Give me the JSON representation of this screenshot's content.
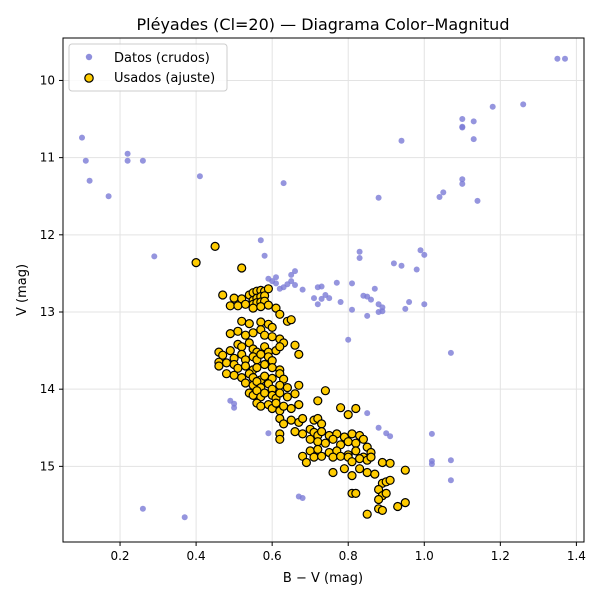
{
  "chart_data": {
    "type": "scatter",
    "title": "Pléyades (Cl=20) — Diagrama Color–Magnitud",
    "xlabel": "B − V (mag)",
    "ylabel": "V (mag)",
    "xlim": [
      0.05,
      1.42
    ],
    "ylim": [
      15.98,
      9.45
    ],
    "y_inverted": true,
    "grid": true,
    "legend_position": "top-left",
    "x_ticks": [
      0.2,
      0.4,
      0.6,
      0.8,
      1.0,
      1.2,
      1.4
    ],
    "x_tick_labels": [
      "0.2",
      "0.4",
      "0.6",
      "0.8",
      "1.0",
      "1.2",
      "1.4"
    ],
    "y_ticks": [
      10,
      11,
      12,
      13,
      14,
      15
    ],
    "y_tick_labels": [
      "10",
      "11",
      "12",
      "13",
      "14",
      "15"
    ],
    "series": [
      {
        "name": "Datos (crudos)",
        "color": "#7b7bd6",
        "marker": "small-circle",
        "points": [
          [
            0.1,
            10.74
          ],
          [
            0.11,
            11.04
          ],
          [
            0.12,
            11.3
          ],
          [
            0.17,
            11.5
          ],
          [
            0.22,
            10.95
          ],
          [
            0.22,
            11.04
          ],
          [
            0.26,
            11.04
          ],
          [
            0.29,
            12.28
          ],
          [
            0.41,
            11.24
          ],
          [
            0.26,
            15.55
          ],
          [
            0.37,
            15.66
          ],
          [
            0.57,
            12.07
          ],
          [
            0.58,
            12.27
          ],
          [
            0.59,
            12.57
          ],
          [
            0.6,
            12.6
          ],
          [
            0.61,
            12.55
          ],
          [
            0.61,
            12.63
          ],
          [
            0.62,
            12.7
          ],
          [
            0.63,
            11.33
          ],
          [
            0.63,
            12.68
          ],
          [
            0.64,
            12.64
          ],
          [
            0.65,
            12.52
          ],
          [
            0.65,
            12.6
          ],
          [
            0.66,
            12.47
          ],
          [
            0.66,
            12.65
          ],
          [
            0.68,
            12.71
          ],
          [
            0.71,
            12.82
          ],
          [
            0.72,
            12.68
          ],
          [
            0.72,
            12.9
          ],
          [
            0.73,
            12.67
          ],
          [
            0.73,
            12.83
          ],
          [
            0.74,
            12.78
          ],
          [
            0.75,
            12.82
          ],
          [
            0.77,
            12.62
          ],
          [
            0.78,
            12.87
          ],
          [
            0.8,
            13.36
          ],
          [
            0.81,
            12.63
          ],
          [
            0.81,
            12.97
          ],
          [
            0.83,
            12.22
          ],
          [
            0.83,
            12.3
          ],
          [
            0.84,
            12.79
          ],
          [
            0.85,
            12.8
          ],
          [
            0.85,
            13.05
          ],
          [
            0.86,
            12.84
          ],
          [
            0.87,
            12.7
          ],
          [
            0.88,
            12.9
          ],
          [
            0.88,
            13.0
          ],
          [
            0.88,
            11.52
          ],
          [
            0.89,
            12.94
          ],
          [
            0.89,
            12.99
          ],
          [
            0.92,
            12.37
          ],
          [
            0.94,
            10.78
          ],
          [
            0.94,
            12.4
          ],
          [
            0.95,
            12.96
          ],
          [
            0.96,
            12.87
          ],
          [
            0.98,
            12.45
          ],
          [
            0.99,
            12.2
          ],
          [
            1.0,
            12.26
          ],
          [
            1.0,
            12.9
          ],
          [
            1.04,
            11.51
          ],
          [
            1.05,
            11.45
          ],
          [
            1.07,
            13.53
          ],
          [
            1.1,
            11.28
          ],
          [
            1.1,
            11.34
          ],
          [
            1.1,
            10.5
          ],
          [
            1.1,
            10.6
          ],
          [
            1.1,
            10.61
          ],
          [
            1.13,
            10.53
          ],
          [
            1.13,
            10.76
          ],
          [
            1.14,
            11.56
          ],
          [
            1.18,
            10.34
          ],
          [
            1.26,
            10.31
          ],
          [
            1.35,
            9.72
          ],
          [
            1.37,
            9.72
          ],
          [
            0.49,
            14.15
          ],
          [
            0.5,
            14.19
          ],
          [
            0.5,
            14.24
          ],
          [
            0.59,
            14.57
          ],
          [
            0.67,
            15.39
          ],
          [
            0.68,
            15.41
          ],
          [
            0.85,
            14.31
          ],
          [
            0.88,
            14.5
          ],
          [
            0.9,
            14.57
          ],
          [
            0.91,
            14.61
          ],
          [
            1.02,
            14.58
          ],
          [
            1.02,
            14.93
          ],
          [
            1.02,
            14.97
          ],
          [
            1.07,
            14.92
          ],
          [
            1.07,
            15.18
          ]
        ]
      },
      {
        "name": "Usados (ajuste)",
        "color": "#ffcc00",
        "edge_color": "#000000",
        "marker": "circle",
        "points": [
          [
            0.4,
            12.36
          ],
          [
            0.45,
            12.15
          ],
          [
            0.52,
            12.43
          ],
          [
            0.47,
            12.78
          ],
          [
            0.5,
            12.82
          ],
          [
            0.52,
            12.83
          ],
          [
            0.54,
            12.78
          ],
          [
            0.55,
            12.75
          ],
          [
            0.56,
            12.73
          ],
          [
            0.57,
            12.72
          ],
          [
            0.58,
            12.73
          ],
          [
            0.59,
            12.7
          ],
          [
            0.55,
            12.85
          ],
          [
            0.56,
            12.82
          ],
          [
            0.57,
            12.8
          ],
          [
            0.58,
            12.79
          ],
          [
            0.55,
            12.9
          ],
          [
            0.56,
            12.88
          ],
          [
            0.57,
            12.87
          ],
          [
            0.58,
            12.86
          ],
          [
            0.49,
            12.92
          ],
          [
            0.51,
            12.92
          ],
          [
            0.53,
            12.9
          ],
          [
            0.55,
            12.95
          ],
          [
            0.57,
            12.93
          ],
          [
            0.59,
            12.91
          ],
          [
            0.61,
            12.95
          ],
          [
            0.62,
            13.03
          ],
          [
            0.64,
            13.12
          ],
          [
            0.52,
            13.12
          ],
          [
            0.54,
            13.15
          ],
          [
            0.57,
            13.13
          ],
          [
            0.59,
            13.16
          ],
          [
            0.6,
            13.2
          ],
          [
            0.65,
            13.1
          ],
          [
            0.49,
            13.28
          ],
          [
            0.51,
            13.25
          ],
          [
            0.53,
            13.3
          ],
          [
            0.55,
            13.27
          ],
          [
            0.57,
            13.23
          ],
          [
            0.58,
            13.3
          ],
          [
            0.6,
            13.32
          ],
          [
            0.62,
            13.35
          ],
          [
            0.63,
            13.4
          ],
          [
            0.66,
            13.43
          ],
          [
            0.67,
            13.55
          ],
          [
            0.51,
            13.42
          ],
          [
            0.52,
            13.45
          ],
          [
            0.54,
            13.4
          ],
          [
            0.55,
            13.48
          ],
          [
            0.56,
            13.52
          ],
          [
            0.58,
            13.45
          ],
          [
            0.59,
            13.52
          ],
          [
            0.61,
            13.5
          ],
          [
            0.62,
            13.45
          ],
          [
            0.46,
            13.52
          ],
          [
            0.47,
            13.56
          ],
          [
            0.49,
            13.5
          ],
          [
            0.5,
            13.6
          ],
          [
            0.52,
            13.55
          ],
          [
            0.53,
            13.62
          ],
          [
            0.55,
            13.58
          ],
          [
            0.56,
            13.62
          ],
          [
            0.57,
            13.55
          ],
          [
            0.59,
            13.58
          ],
          [
            0.6,
            13.63
          ],
          [
            0.46,
            13.65
          ],
          [
            0.46,
            13.7
          ],
          [
            0.48,
            13.66
          ],
          [
            0.5,
            13.68
          ],
          [
            0.51,
            13.73
          ],
          [
            0.53,
            13.7
          ],
          [
            0.55,
            13.75
          ],
          [
            0.56,
            13.72
          ],
          [
            0.58,
            13.68
          ],
          [
            0.6,
            13.72
          ],
          [
            0.62,
            13.75
          ],
          [
            0.48,
            13.8
          ],
          [
            0.5,
            13.82
          ],
          [
            0.52,
            13.85
          ],
          [
            0.54,
            13.8
          ],
          [
            0.55,
            13.85
          ],
          [
            0.57,
            13.88
          ],
          [
            0.58,
            13.83
          ],
          [
            0.6,
            13.86
          ],
          [
            0.62,
            13.8
          ],
          [
            0.63,
            13.87
          ],
          [
            0.53,
            13.92
          ],
          [
            0.55,
            13.95
          ],
          [
            0.56,
            13.9
          ],
          [
            0.57,
            13.98
          ],
          [
            0.59,
            13.93
          ],
          [
            0.6,
            14.0
          ],
          [
            0.62,
            13.95
          ],
          [
            0.64,
            13.98
          ],
          [
            0.67,
            13.95
          ],
          [
            0.54,
            14.05
          ],
          [
            0.55,
            14.08
          ],
          [
            0.56,
            14.02
          ],
          [
            0.57,
            14.1
          ],
          [
            0.58,
            14.05
          ],
          [
            0.6,
            14.08
          ],
          [
            0.61,
            14.12
          ],
          [
            0.62,
            14.05
          ],
          [
            0.64,
            14.1
          ],
          [
            0.66,
            14.06
          ],
          [
            0.56,
            14.18
          ],
          [
            0.57,
            14.22
          ],
          [
            0.59,
            14.2
          ],
          [
            0.6,
            14.25
          ],
          [
            0.61,
            14.18
          ],
          [
            0.62,
            14.28
          ],
          [
            0.63,
            14.22
          ],
          [
            0.65,
            14.25
          ],
          [
            0.67,
            14.2
          ],
          [
            0.72,
            14.15
          ],
          [
            0.74,
            14.02
          ],
          [
            0.78,
            14.24
          ],
          [
            0.8,
            14.33
          ],
          [
            0.82,
            14.25
          ],
          [
            0.62,
            14.38
          ],
          [
            0.63,
            14.45
          ],
          [
            0.65,
            14.4
          ],
          [
            0.67,
            14.43
          ],
          [
            0.68,
            14.38
          ],
          [
            0.71,
            14.4
          ],
          [
            0.72,
            14.38
          ],
          [
            0.73,
            14.45
          ],
          [
            0.62,
            14.58
          ],
          [
            0.62,
            14.65
          ],
          [
            0.66,
            14.55
          ],
          [
            0.68,
            14.58
          ],
          [
            0.7,
            14.52
          ],
          [
            0.71,
            14.56
          ],
          [
            0.72,
            14.6
          ],
          [
            0.73,
            14.55
          ],
          [
            0.75,
            14.6
          ],
          [
            0.77,
            14.58
          ],
          [
            0.79,
            14.62
          ],
          [
            0.81,
            14.58
          ],
          [
            0.83,
            14.6
          ],
          [
            0.7,
            14.65
          ],
          [
            0.72,
            14.68
          ],
          [
            0.74,
            14.7
          ],
          [
            0.76,
            14.65
          ],
          [
            0.78,
            14.72
          ],
          [
            0.8,
            14.68
          ],
          [
            0.82,
            14.7
          ],
          [
            0.84,
            14.65
          ],
          [
            0.85,
            14.75
          ],
          [
            0.7,
            14.8
          ],
          [
            0.72,
            14.78
          ],
          [
            0.75,
            14.82
          ],
          [
            0.77,
            14.8
          ],
          [
            0.8,
            14.85
          ],
          [
            0.82,
            14.8
          ],
          [
            0.84,
            14.88
          ],
          [
            0.86,
            14.82
          ],
          [
            0.68,
            14.87
          ],
          [
            0.69,
            14.95
          ],
          [
            0.71,
            14.88
          ],
          [
            0.73,
            14.87
          ],
          [
            0.76,
            14.88
          ],
          [
            0.78,
            14.87
          ],
          [
            0.8,
            14.88
          ],
          [
            0.81,
            14.94
          ],
          [
            0.83,
            14.9
          ],
          [
            0.85,
            14.92
          ],
          [
            0.86,
            14.88
          ],
          [
            0.76,
            15.08
          ],
          [
            0.79,
            15.03
          ],
          [
            0.81,
            15.12
          ],
          [
            0.83,
            15.03
          ],
          [
            0.85,
            15.08
          ],
          [
            0.87,
            15.1
          ],
          [
            0.89,
            14.95
          ],
          [
            0.91,
            14.96
          ],
          [
            0.95,
            15.05
          ],
          [
            0.89,
            15.22
          ],
          [
            0.9,
            15.2
          ],
          [
            0.91,
            15.18
          ],
          [
            0.81,
            15.35
          ],
          [
            0.82,
            15.35
          ],
          [
            0.88,
            15.3
          ],
          [
            0.89,
            15.38
          ],
          [
            0.9,
            15.35
          ],
          [
            0.88,
            15.43
          ],
          [
            0.93,
            15.52
          ],
          [
            0.95,
            15.47
          ],
          [
            0.88,
            15.55
          ],
          [
            0.89,
            15.57
          ],
          [
            0.85,
            15.62
          ]
        ]
      }
    ]
  }
}
